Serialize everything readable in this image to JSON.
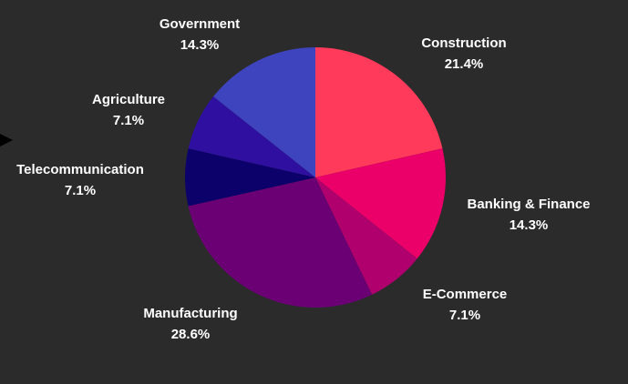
{
  "chart_data": {
    "type": "pie",
    "title": "",
    "start_angle_deg": 0,
    "direction": "clockwise",
    "slices": [
      {
        "label": "Construction",
        "pct_label": "21.4%",
        "value": 21.4,
        "color": "#ff3a5a"
      },
      {
        "label": "Banking & Finance",
        "pct_label": "14.3%",
        "value": 14.3,
        "color": "#ea0068"
      },
      {
        "label": "E-Commerce",
        "pct_label": "7.1%",
        "value": 7.1,
        "color": "#b0006e"
      },
      {
        "label": "Manufacturing",
        "pct_label": "28.6%",
        "value": 28.6,
        "color": "#6b0075"
      },
      {
        "label": "Telecommunication",
        "pct_label": "7.1%",
        "value": 7.1,
        "color": "#0c006b"
      },
      {
        "label": "Agriculture",
        "pct_label": "7.1%",
        "value": 7.1,
        "color": "#2e0fa0"
      },
      {
        "label": "Government",
        "pct_label": "14.3%",
        "value": 14.3,
        "color": "#3e44bd"
      }
    ],
    "legend": "none",
    "grid": false
  },
  "colors": {
    "background": "#2b2b2b",
    "label_text": "#ffffff",
    "pointer": "#000000"
  },
  "icons": {
    "pointer": "left-pointer-triangle-icon"
  }
}
